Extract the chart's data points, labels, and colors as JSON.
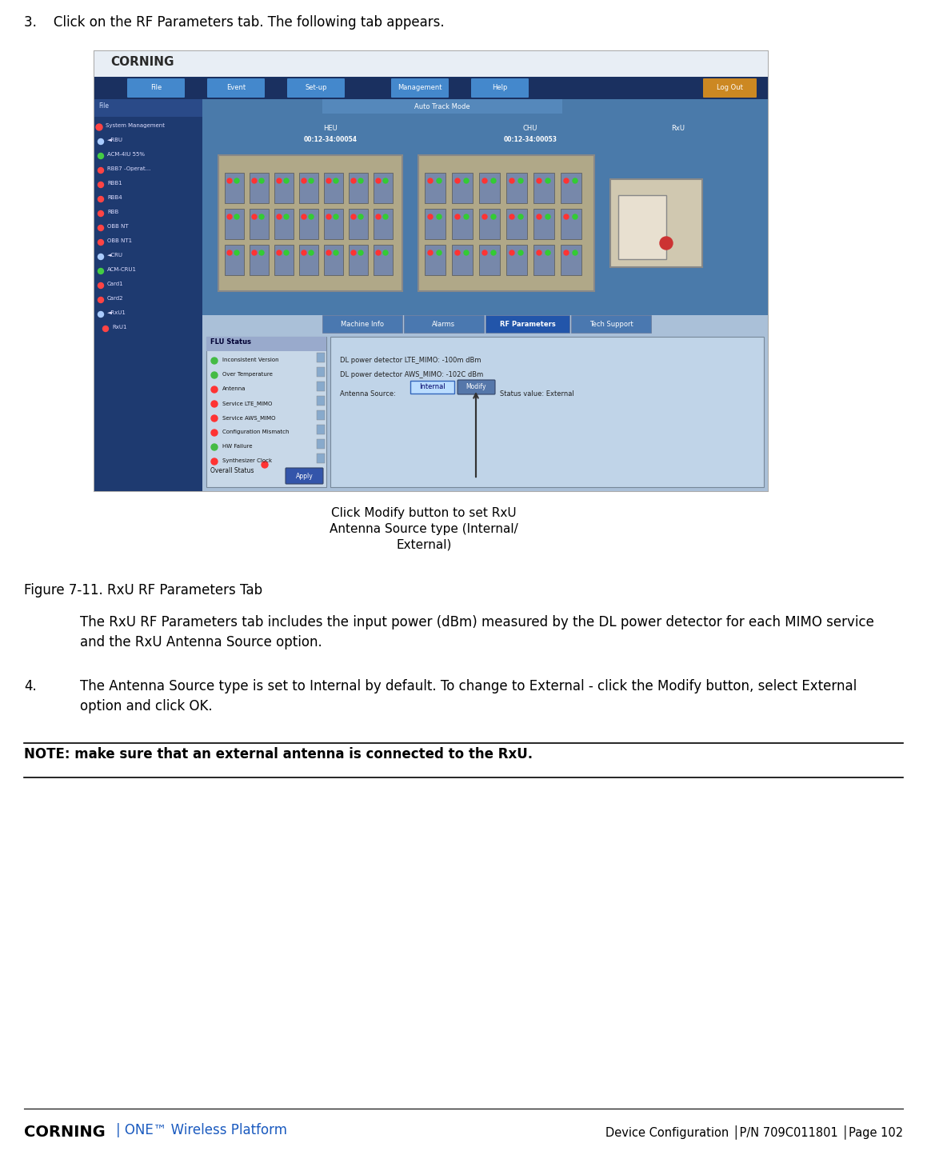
{
  "bg_color": "#ffffff",
  "step3_text": "3.    Click on the RF Parameters tab. The following tab appears.",
  "figure_caption": "Figure 7-11. RxU RF Parameters Tab",
  "body_text_1": "The RxU RF Parameters tab includes the input power (dBm) measured by the DL power detector for each MIMO service\nand the RxU Antenna Source option.",
  "step4_number": "4.",
  "step4_text": "The Antenna Source type is set to Internal by default. To change to External - click the Modify button, select External\noption and click OK.",
  "note_text": "NOTE: make sure that an external antenna is connected to the RxU.",
  "footer_left_black": "CORNING",
  "footer_left_blue": "ONE™ Wireless Platform",
  "footer_right": "Device Configuration │P/N 709C011801 │Page 102",
  "callout_text": "Click Modify button to set RxU\nAntenna Source type (Internal/\nExternal)",
  "screenshot_border": "#888888",
  "banner_color": "#1a3a7a",
  "nav_color": "#2a5aaa",
  "sidebar_color": "#1e3a70",
  "hw_bg_color": "#3a6aaa",
  "content_bg": "#b8cee0",
  "flu_bg": "#d8e8f0",
  "rf_bg": "#c8daea"
}
